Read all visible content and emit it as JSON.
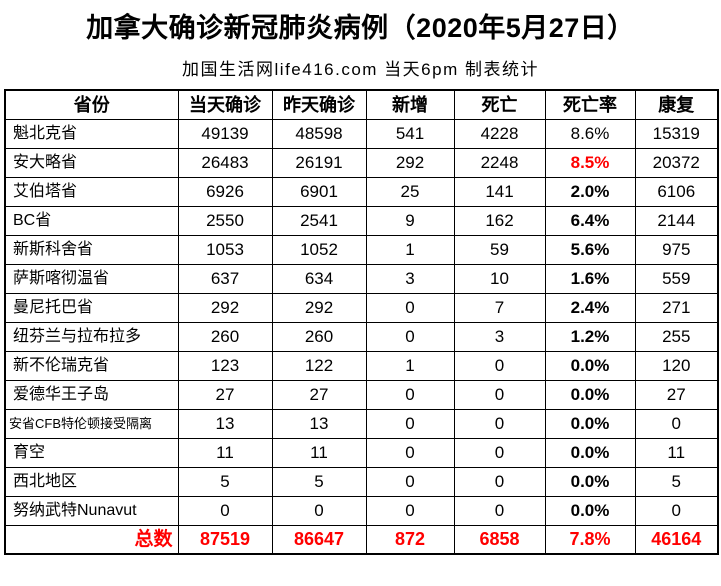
{
  "title": "加拿大确诊新冠肺炎病例（2020年5月27日）",
  "subtitle": "加国生活网life416.com 当天6pm 制表统计",
  "colors": {
    "highlight_red": "#ff0000",
    "text": "#000000",
    "border": "#000000",
    "background": "#ffffff"
  },
  "chart_data": {
    "type": "table",
    "title": "加拿大确诊新冠肺炎病例（2020年5月27日）",
    "subtitle": "加国生活网life416.com 当天6pm 制表统计",
    "columns": [
      "省份",
      "当天确诊",
      "昨天确诊",
      "新增",
      "死亡",
      "死亡率",
      "康复"
    ],
    "rows": [
      {
        "cells": [
          "魁北克省",
          "49139",
          "48598",
          "541",
          "4228",
          "8.6%",
          "15319"
        ],
        "rate_style": "normal",
        "small_label": false
      },
      {
        "cells": [
          "安大略省",
          "26483",
          "26191",
          "292",
          "2248",
          "8.5%",
          "20372"
        ],
        "rate_style": "red-bold",
        "small_label": false
      },
      {
        "cells": [
          "艾伯塔省",
          "6926",
          "6901",
          "25",
          "141",
          "2.0%",
          "6106"
        ],
        "rate_style": "bold",
        "small_label": false
      },
      {
        "cells": [
          "BC省",
          "2550",
          "2541",
          "9",
          "162",
          "6.4%",
          "2144"
        ],
        "rate_style": "bold",
        "small_label": false
      },
      {
        "cells": [
          "新斯科舍省",
          "1053",
          "1052",
          "1",
          "59",
          "5.6%",
          "975"
        ],
        "rate_style": "bold",
        "small_label": false
      },
      {
        "cells": [
          "萨斯喀彻温省",
          "637",
          "634",
          "3",
          "10",
          "1.6%",
          "559"
        ],
        "rate_style": "bold",
        "small_label": false
      },
      {
        "cells": [
          "曼尼托巴省",
          "292",
          "292",
          "0",
          "7",
          "2.4%",
          "271"
        ],
        "rate_style": "bold",
        "small_label": false
      },
      {
        "cells": [
          "纽芬兰与拉布拉多",
          "260",
          "260",
          "0",
          "3",
          "1.2%",
          "255"
        ],
        "rate_style": "bold",
        "small_label": false
      },
      {
        "cells": [
          "新不伦瑞克省",
          "123",
          "122",
          "1",
          "0",
          "0.0%",
          "120"
        ],
        "rate_style": "bold",
        "small_label": false
      },
      {
        "cells": [
          "爱德华王子岛",
          "27",
          "27",
          "0",
          "0",
          "0.0%",
          "27"
        ],
        "rate_style": "bold",
        "small_label": false
      },
      {
        "cells": [
          "安省CFB特伦顿接受隔离",
          "13",
          "13",
          "0",
          "0",
          "0.0%",
          "0"
        ],
        "rate_style": "bold",
        "small_label": true
      },
      {
        "cells": [
          "育空",
          "11",
          "11",
          "0",
          "0",
          "0.0%",
          "11"
        ],
        "rate_style": "bold",
        "small_label": false
      },
      {
        "cells": [
          "西北地区",
          "5",
          "5",
          "0",
          "0",
          "0.0%",
          "5"
        ],
        "rate_style": "bold",
        "small_label": false
      },
      {
        "cells": [
          "努纳武特Nunavut",
          "0",
          "0",
          "0",
          "0",
          "0.0%",
          "0"
        ],
        "rate_style": "bold",
        "small_label": false
      }
    ],
    "total_row": {
      "cells": [
        "总数",
        "87519",
        "86647",
        "872",
        "6858",
        "7.8%",
        "46164"
      ]
    }
  }
}
